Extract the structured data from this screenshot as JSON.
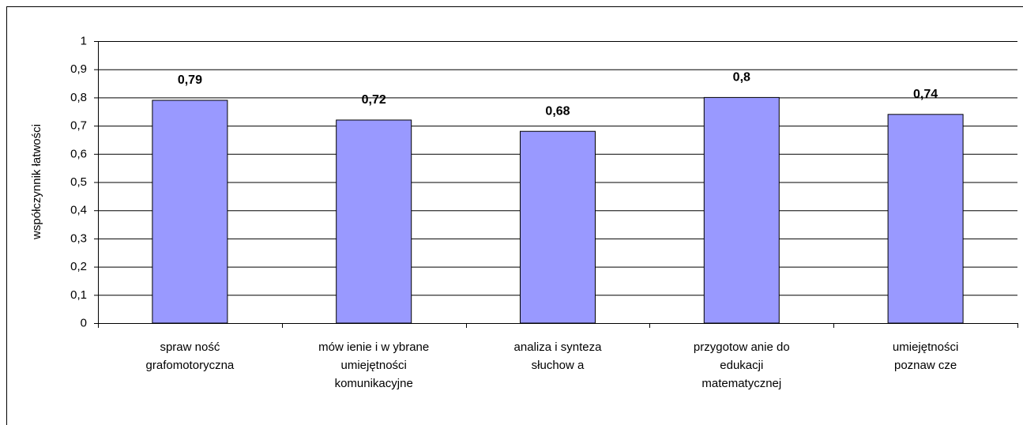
{
  "chart_data": {
    "type": "bar",
    "y_label": "współczynnik łatwości",
    "categories": [
      "spraw ność\ngrafomotoryczna",
      "mów ienie i w ybrane\numiejętności\nkomunikacyjne",
      "analiza i synteza\nsłuchow a",
      "przygotow anie do\nedukacji\nmatematycznej",
      "umiejętności\npoznaw cze"
    ],
    "values": [
      0.79,
      0.72,
      0.68,
      0.8,
      0.74
    ],
    "value_labels": [
      "0,79",
      "0,72",
      "0,68",
      "0,8",
      "0,74"
    ],
    "color": "#9999ff",
    "ylim": [
      0,
      1
    ],
    "yticks": [
      0,
      {
        "value": 0.1,
        "label": "0,1"
      },
      {
        "value": 0.2,
        "label": "0,2"
      },
      {
        "value": 0.3,
        "label": "0,3"
      },
      {
        "value": 0.4,
        "label": "0,4"
      },
      {
        "value": 0.5,
        "label": "0,5"
      },
      {
        "value": 0.6,
        "label": "0,6"
      },
      {
        "value": 0.7,
        "label": "0,7"
      },
      {
        "value": 0.8,
        "label": "0,8"
      },
      {
        "value": 0.9,
        "label": "0,9"
      },
      1
    ],
    "grid": true
  }
}
